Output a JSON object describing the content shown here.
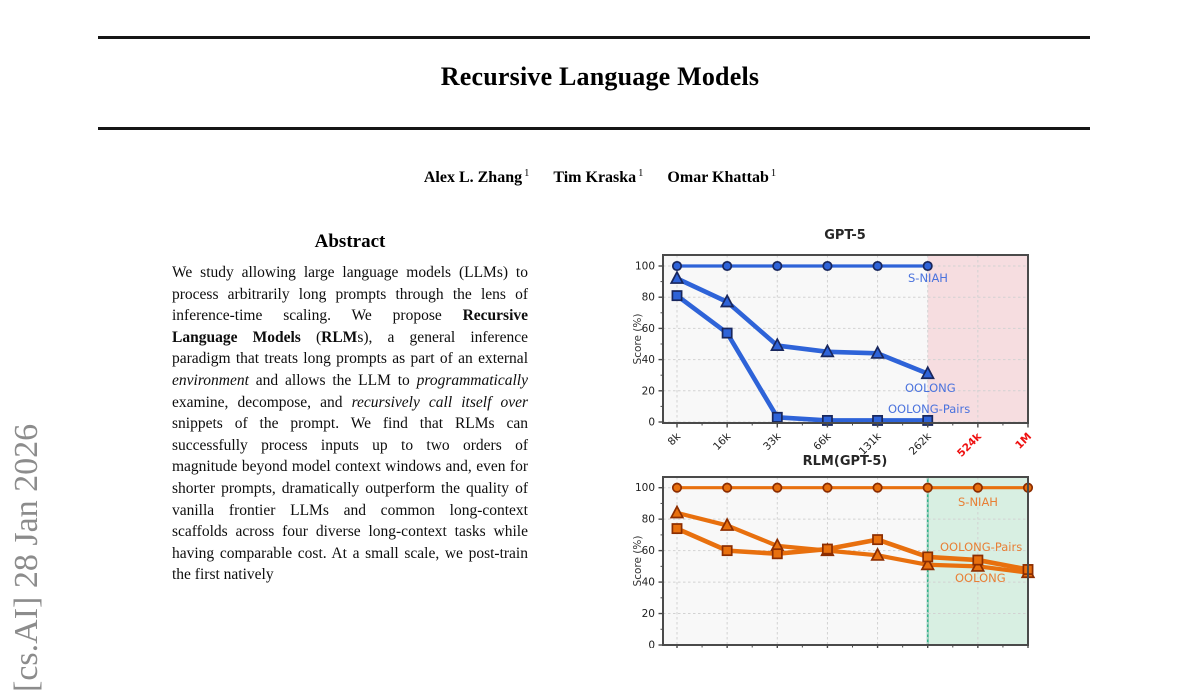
{
  "watermark": {
    "text": "[cs.AI] 28 Jan 2026",
    "color": "#8c8c8c"
  },
  "header": {
    "title": "Recursive Language Models",
    "authors": [
      {
        "name": "Alex L. Zhang",
        "affiliation_sup": "1"
      },
      {
        "name": "Tim Kraska",
        "affiliation_sup": "1"
      },
      {
        "name": "Omar Khattab",
        "affiliation_sup": "1"
      }
    ]
  },
  "abstract": {
    "heading": "Abstract",
    "segments": [
      {
        "t": "We study allowing large language models (LLMs) to process arbitrarily long prompts through the lens of inference-time scaling. We propose "
      },
      {
        "t": "Recursive Language Models",
        "b": 1
      },
      {
        "t": " ("
      },
      {
        "t": "RLM",
        "b": 1
      },
      {
        "t": "s), a general inference paradigm that treats long prompts as part of an external "
      },
      {
        "t": "environment",
        "i": 1
      },
      {
        "t": " and allows the LLM to "
      },
      {
        "t": "programmatically",
        "i": 1
      },
      {
        "t": " examine, decompose, and "
      },
      {
        "t": "recursively call itself over",
        "i": 1
      },
      {
        "t": " snippets of the prompt. We find that RLMs can successfully process inputs up to two orders of magnitude beyond model context windows and, even for shorter prompts, dramatically outperform the quality of vanilla frontier LLMs and common long-context scaffolds across four diverse long-context tasks while having comparable cost. At a small scale, we post-train the first natively"
      }
    ]
  },
  "chart_data": [
    {
      "type": "line",
      "title": "GPT-5",
      "ylabel": "Score (%)",
      "ylim": [
        0,
        100
      ],
      "y_ticks": [
        0,
        20,
        40,
        60,
        80,
        100
      ],
      "categories": [
        "8k",
        "16k",
        "33k",
        "66k",
        "131k",
        "262k",
        "524k",
        "1M"
      ],
      "red_categories": [
        "524k",
        "1M"
      ],
      "grid": true,
      "show_x_labels": true,
      "plot_bg": "#f8f8f8",
      "line_color": "#2e63d8",
      "marker_edge": "#18265c",
      "label_color": "#4a72dd",
      "red_tick_color": "#ee1111",
      "shaded_region": {
        "from": "262k",
        "color": "#f6dde0",
        "border": null
      },
      "series": [
        {
          "name": "S-NIAH",
          "marker": "circle",
          "lw": 3.2,
          "values": [
            100,
            100,
            100,
            100,
            100,
            100,
            null,
            null
          ]
        },
        {
          "name": "OOLONG",
          "marker": "triangle",
          "lw": 4.6,
          "values": [
            92,
            77,
            49,
            45,
            44,
            31,
            null,
            null
          ]
        },
        {
          "name": "OOLONG-Pairs",
          "marker": "square",
          "lw": 4.6,
          "values": [
            81,
            57,
            3,
            1,
            1,
            1,
            null,
            null
          ]
        }
      ],
      "annotations": [
        {
          "text": "S-NIAH",
          "x": 280,
          "y": 62
        },
        {
          "text": "OOLONG",
          "x": 277,
          "y": 172
        },
        {
          "text": "OOLONG-Pairs",
          "x": 260,
          "y": 193
        }
      ]
    },
    {
      "type": "line",
      "title": "RLM(GPT-5)",
      "ylabel": "Score (%)",
      "ylim": [
        0,
        100
      ],
      "y_ticks": [
        0,
        20,
        40,
        60,
        80,
        100
      ],
      "categories": [
        "8k",
        "16k",
        "33k",
        "66k",
        "131k",
        "262k",
        "524k",
        "1M"
      ],
      "red_categories": [],
      "grid": true,
      "show_x_labels": false,
      "plot_bg": "#f8f8f8",
      "line_color": "#e8700e",
      "marker_edge": "#8c2d00",
      "label_color": "#e87f35",
      "red_tick_color": "#ee1111",
      "shaded_region": {
        "from": "262k",
        "color": "#d8efe2",
        "border": "#33b28a"
      },
      "series": [
        {
          "name": "S-NIAH",
          "marker": "circle",
          "lw": 3.2,
          "values": [
            100,
            100,
            100,
            100,
            100,
            100,
            100,
            100
          ]
        },
        {
          "name": "OOLONG",
          "marker": "triangle",
          "lw": 4.2,
          "values": [
            84,
            76,
            63,
            60,
            57,
            51,
            50,
            46
          ]
        },
        {
          "name": "OOLONG-Pairs",
          "marker": "square",
          "lw": 4.6,
          "values": [
            74,
            60,
            58,
            61,
            67,
            56,
            54,
            48
          ]
        }
      ],
      "annotations": [
        {
          "text": "S-NIAH",
          "x": 330,
          "y": 58
        },
        {
          "text": "OOLONG-Pairs",
          "x": 312,
          "y": 103
        },
        {
          "text": "OOLONG",
          "x": 327,
          "y": 134
        }
      ]
    }
  ]
}
